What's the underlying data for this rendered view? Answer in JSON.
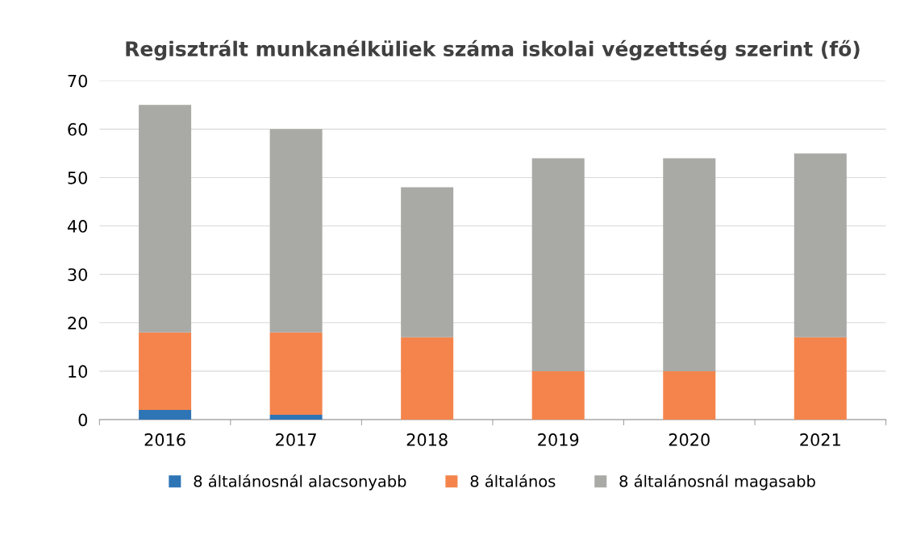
{
  "chart_data": {
    "type": "bar",
    "stacked": true,
    "title": "Regisztrált munkanélküliek száma iskolai végzettség szerint (fő)",
    "categories": [
      "2016",
      "2017",
      "2018",
      "2019",
      "2020",
      "2021"
    ],
    "series": [
      {
        "name": "8 általánosnál alacsonyabb",
        "color": "#2e75b6",
        "values": [
          2,
          1,
          0,
          0,
          0,
          0
        ]
      },
      {
        "name": "8 általános",
        "color": "#f4844c",
        "values": [
          16,
          17,
          17,
          10,
          10,
          17
        ]
      },
      {
        "name": "8 általánosnál magasabb",
        "color": "#a9aaa6",
        "values": [
          47,
          42,
          31,
          44,
          44,
          38
        ]
      }
    ],
    "ylim": [
      0,
      70
    ],
    "yticks": [
      0,
      10,
      20,
      30,
      40,
      50,
      60,
      70
    ],
    "grid": "y",
    "legend": "bottom"
  }
}
